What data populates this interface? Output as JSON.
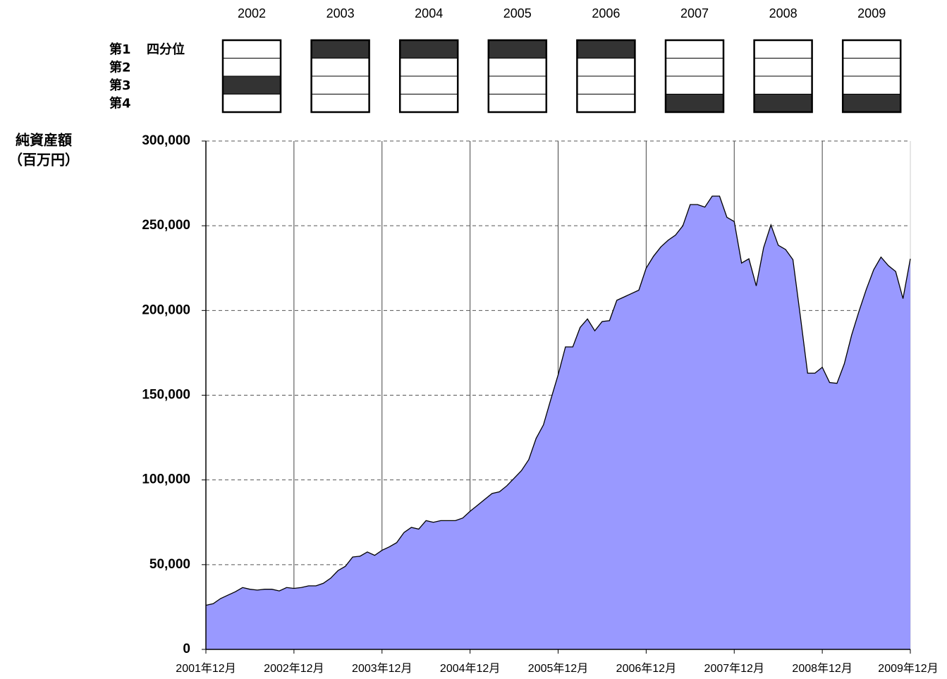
{
  "chart_data": {
    "type": "area",
    "ylabel": [
      "純資産額",
      "（百万円）"
    ],
    "categories": [
      "2001年12月",
      null,
      null,
      null,
      null,
      null,
      null,
      null,
      null,
      null,
      null,
      null,
      "2002年12月",
      null,
      null,
      null,
      null,
      null,
      null,
      null,
      null,
      null,
      null,
      null,
      "2003年12月",
      null,
      null,
      null,
      null,
      null,
      null,
      null,
      null,
      null,
      null,
      null,
      "2004年12月",
      null,
      null,
      null,
      null,
      null,
      null,
      null,
      null,
      null,
      null,
      null,
      "2005年12月",
      null,
      null,
      null,
      null,
      null,
      null,
      null,
      null,
      null,
      null,
      null,
      "2006年12月",
      null,
      null,
      null,
      null,
      null,
      null,
      null,
      null,
      null,
      null,
      null,
      "2007年12月",
      null,
      null,
      null,
      null,
      null,
      null,
      null,
      null,
      null,
      null,
      null,
      "2008年12月",
      null,
      null,
      null,
      null,
      null,
      null,
      null,
      null,
      null,
      null,
      null,
      "2009年12月"
    ],
    "values": [
      26000,
      27000,
      30000,
      32000,
      34000,
      36500,
      35500,
      35000,
      35500,
      35500,
      34500,
      36500,
      36000,
      36500,
      37500,
      37500,
      39000,
      42000,
      46500,
      49000,
      54500,
      55000,
      57500,
      55500,
      58500,
      60500,
      63000,
      69000,
      72000,
      71000,
      76000,
      75000,
      76000,
      76000,
      76000,
      77500,
      81500,
      85000,
      88500,
      92000,
      93000,
      96500,
      101000,
      105500,
      112000,
      124500,
      132500,
      147500,
      162000,
      178500,
      178500,
      190000,
      195000,
      188000,
      193500,
      194000,
      206000,
      208000,
      210000,
      212000,
      225000,
      232000,
      237500,
      241500,
      244500,
      250000,
      262500,
      262500,
      261000,
      267500,
      267500,
      255000,
      252500,
      228000,
      230500,
      214500,
      237000,
      250500,
      238500,
      236000,
      230000,
      197000,
      163000,
      163000,
      166500,
      157500,
      157000,
      168500,
      185500,
      199500,
      212500,
      224000,
      231500,
      226500,
      223000,
      207000,
      230500
    ],
    "color": "#9999ff",
    "line_color": "#000000",
    "ylim": [
      0,
      300000
    ],
    "yticks": [
      0,
      {
        "value": 50000,
        "label": "50,000"
      },
      {
        "value": 100000,
        "label": "100,000"
      },
      {
        "value": 150000,
        "label": "150,000"
      },
      {
        "value": 200000,
        "label": "200,000"
      },
      {
        "value": 250000,
        "label": "250,000"
      },
      {
        "value": 300000,
        "label": "300,000"
      }
    ],
    "grid": true
  },
  "quartile_panel": {
    "years": [
      "2002",
      "2003",
      "2004",
      "2005",
      "2006",
      "2007",
      "2008",
      "2009"
    ],
    "rank_labels": [
      "第1",
      "第2",
      "第3",
      "第4"
    ],
    "rank_title": "四分位",
    "highlight": [
      3,
      1,
      1,
      1,
      1,
      4,
      4,
      4
    ],
    "highlight_color": "#333333"
  }
}
